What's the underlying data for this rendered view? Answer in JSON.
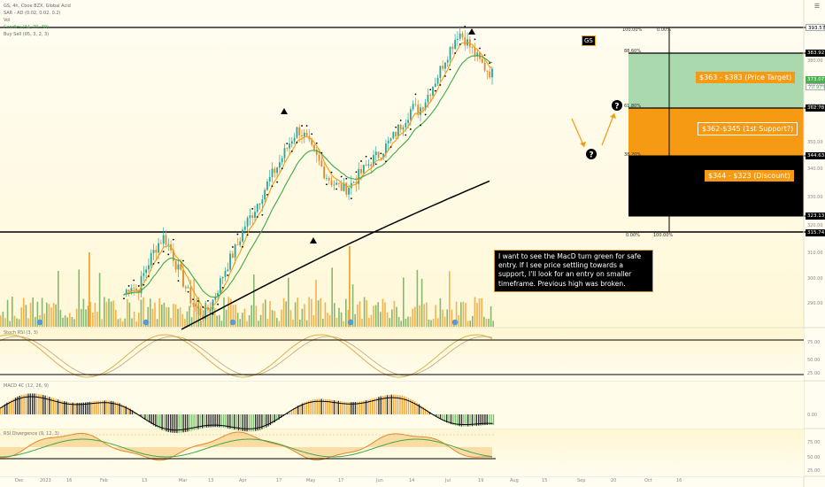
{
  "legend": {
    "symbol_line": "GS, 4h, Cboe BZX, Global Acid",
    "sar_line": "SAR - AD (0.02, 0.02, 0.2)",
    "vol_line": "Vol",
    "ema_line": "Candles (34, 70, 30)",
    "extra_line": "Buy Sell (05, 3, 2, 3)"
  },
  "ticker_badge": "GS",
  "note": "I want to see the MacD turn green for safe entry. If I see price settling towards a support, I'll look for an entry on smaller timeframe. Previous high was broken.",
  "zones": [
    {
      "label": "$363 - $383 (Price  Target)",
      "color": "#a9d9ad",
      "text_color": "#1f4d22"
    },
    {
      "label": "$362-$345 (1st Support?)",
      "color": "#f59a12",
      "text_color": "#ffffff"
    },
    {
      "label": "$344 - $323 (Discount)",
      "color": "#000000",
      "text_color": "#ffffff"
    }
  ],
  "fib_labels": [
    {
      "left": "100.00%",
      "right": "0.00%"
    },
    {
      "left": "88.60%"
    },
    {
      "left": "61.80%"
    },
    {
      "left": "38.20%"
    },
    {
      "left": "0.00%",
      "right": "100.00%"
    }
  ],
  "price_tags": [
    {
      "text": "393.57",
      "bg": "#ffffff",
      "fg": "#000000"
    },
    {
      "text": "383.92",
      "bg": "#000000",
      "fg": "#ffffff"
    },
    {
      "text": "373.07",
      "bg": "#4caf50",
      "fg": "#ffffff"
    },
    {
      "text": "70.97%",
      "bg": "#ffffff",
      "fg": "#4caf50"
    },
    {
      "text": "362.78",
      "bg": "#000000",
      "fg": "#ffffff"
    },
    {
      "text": "344.63",
      "bg": "#000000",
      "fg": "#ffffff"
    },
    {
      "text": "323.13",
      "bg": "#000000",
      "fg": "#ffffff"
    },
    {
      "text": "315.74",
      "bg": "#000000",
      "fg": "#ffffff"
    }
  ],
  "right_axis": [
    "380.00",
    "370.00",
    "360.00",
    "350.00",
    "340.00",
    "330.00",
    "320.00",
    "310.00",
    "300.00",
    "290.00"
  ],
  "osc_axis": [
    "75.00",
    "50.00",
    "25.00"
  ],
  "macd_axis": [
    "0.00"
  ],
  "rsi_axis": [
    "75.00",
    "50.00",
    "25.00"
  ],
  "time_axis": [
    "Dec",
    "2023",
    "16",
    "Feb",
    "13",
    "Mar",
    "13",
    "Apr",
    "17",
    "May",
    "17",
    "Jun",
    "14",
    "Jul",
    "19",
    "Aug",
    "15",
    "Sep",
    "20",
    "Oct",
    "16"
  ],
  "panes": {
    "osc": "Stoch RSI (3, 3)",
    "macd": "MACD 4C (12, 26, 9)",
    "rsi": "RSI Divergence (9, 12, 3)"
  },
  "chart_data": {
    "type": "line",
    "title": "GS, 4h",
    "ylim": [
      280,
      395
    ],
    "close_series": [
      292,
      296,
      293,
      300,
      306,
      311,
      314,
      309,
      302,
      296,
      290,
      286,
      284,
      288,
      294,
      301,
      306,
      311,
      318,
      322,
      327,
      332,
      337,
      341,
      346,
      351,
      355,
      352,
      347,
      343,
      338,
      335,
      333,
      332,
      334,
      337,
      340,
      343,
      345,
      348,
      351,
      355,
      359,
      363,
      362,
      366,
      371,
      376,
      382,
      387,
      392,
      389,
      385,
      381,
      378,
      376
    ],
    "levels": [
      393.57,
      383.92,
      362.78,
      344.63,
      323.13,
      315.74
    ],
    "last_price": 373.07
  }
}
